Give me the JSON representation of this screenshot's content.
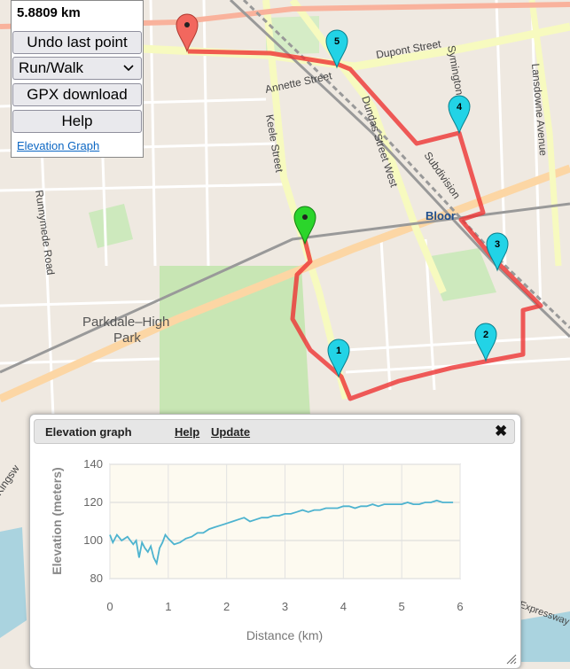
{
  "map": {
    "labels": {
      "dupont": "Dupont Street",
      "annette": "Annette Street",
      "keele": "Keele Street",
      "dundas": "Dundas Street West",
      "symington": "Symington",
      "lansdowne": "Lansdowne Avenue",
      "runnymede": "Runnymede Road",
      "parkdale": "Parkdale–High",
      "park": "Park",
      "bloor": "Bloor",
      "subdivision": "Subdivision",
      "kingsway": "Kingsw",
      "expressway": "Expressway"
    },
    "markers": [
      {
        "label": "1",
        "color": "#22d3e6"
      },
      {
        "label": "2",
        "color": "#22d3e6"
      },
      {
        "label": "3",
        "color": "#22d3e6"
      },
      {
        "label": "4",
        "color": "#22d3e6"
      },
      {
        "label": "5",
        "color": "#22d3e6"
      }
    ],
    "start_marker_color": "#2bd52b",
    "end_marker_color": "#f2675e",
    "route_color": "#ee3333"
  },
  "controls": {
    "distance": "5.8809 km",
    "undo_label": "Undo last point",
    "mode_selected": "Run/Walk",
    "gpx_label": "GPX download",
    "help_label": "Help",
    "elevation_link": "Elevation Graph"
  },
  "panel": {
    "title": "Elevation graph",
    "help": "Help",
    "update": "Update",
    "close": "✖"
  },
  "chart_data": {
    "type": "line",
    "xlabel": "Distance (km)",
    "ylabel": "Elevation (meters)",
    "xlim": [
      0,
      6
    ],
    "ylim": [
      80,
      140
    ],
    "xticks": [
      "0",
      "1",
      "2",
      "3",
      "4",
      "5",
      "6"
    ],
    "yticks": [
      "80",
      "100",
      "120",
      "140"
    ],
    "grid": true,
    "line_color": "#4db3cf",
    "series": [
      {
        "x": [
          0,
          0.05,
          0.12,
          0.2,
          0.3,
          0.4,
          0.45,
          0.5,
          0.55,
          0.6,
          0.65,
          0.7,
          0.75,
          0.8,
          0.85,
          0.9,
          0.95,
          1.0,
          1.1,
          1.2,
          1.3,
          1.4,
          1.5,
          1.6,
          1.7,
          1.8,
          1.9,
          2.0,
          2.1,
          2.2,
          2.3,
          2.4,
          2.5,
          2.6,
          2.7,
          2.8,
          2.9,
          3.0,
          3.1,
          3.2,
          3.3,
          3.4,
          3.5,
          3.6,
          3.7,
          3.8,
          3.9,
          4.0,
          4.1,
          4.2,
          4.3,
          4.4,
          4.5,
          4.6,
          4.7,
          4.8,
          4.9,
          5.0,
          5.1,
          5.2,
          5.3,
          5.4,
          5.5,
          5.6,
          5.7,
          5.8,
          5.88
        ],
        "y": [
          103,
          99,
          103,
          100,
          102,
          98,
          100,
          91,
          99,
          96,
          94,
          97,
          91,
          88,
          96,
          99,
          103,
          101,
          98,
          99,
          101,
          102,
          104,
          104,
          106,
          107,
          108,
          109,
          110,
          111,
          112,
          110,
          111,
          112,
          112,
          113,
          113,
          114,
          114,
          115,
          116,
          115,
          116,
          116,
          117,
          117,
          117,
          118,
          118,
          117,
          118,
          118,
          119,
          118,
          119,
          119,
          119,
          119,
          120,
          119,
          119,
          120,
          120,
          121,
          120,
          120,
          120
        ]
      }
    ]
  }
}
